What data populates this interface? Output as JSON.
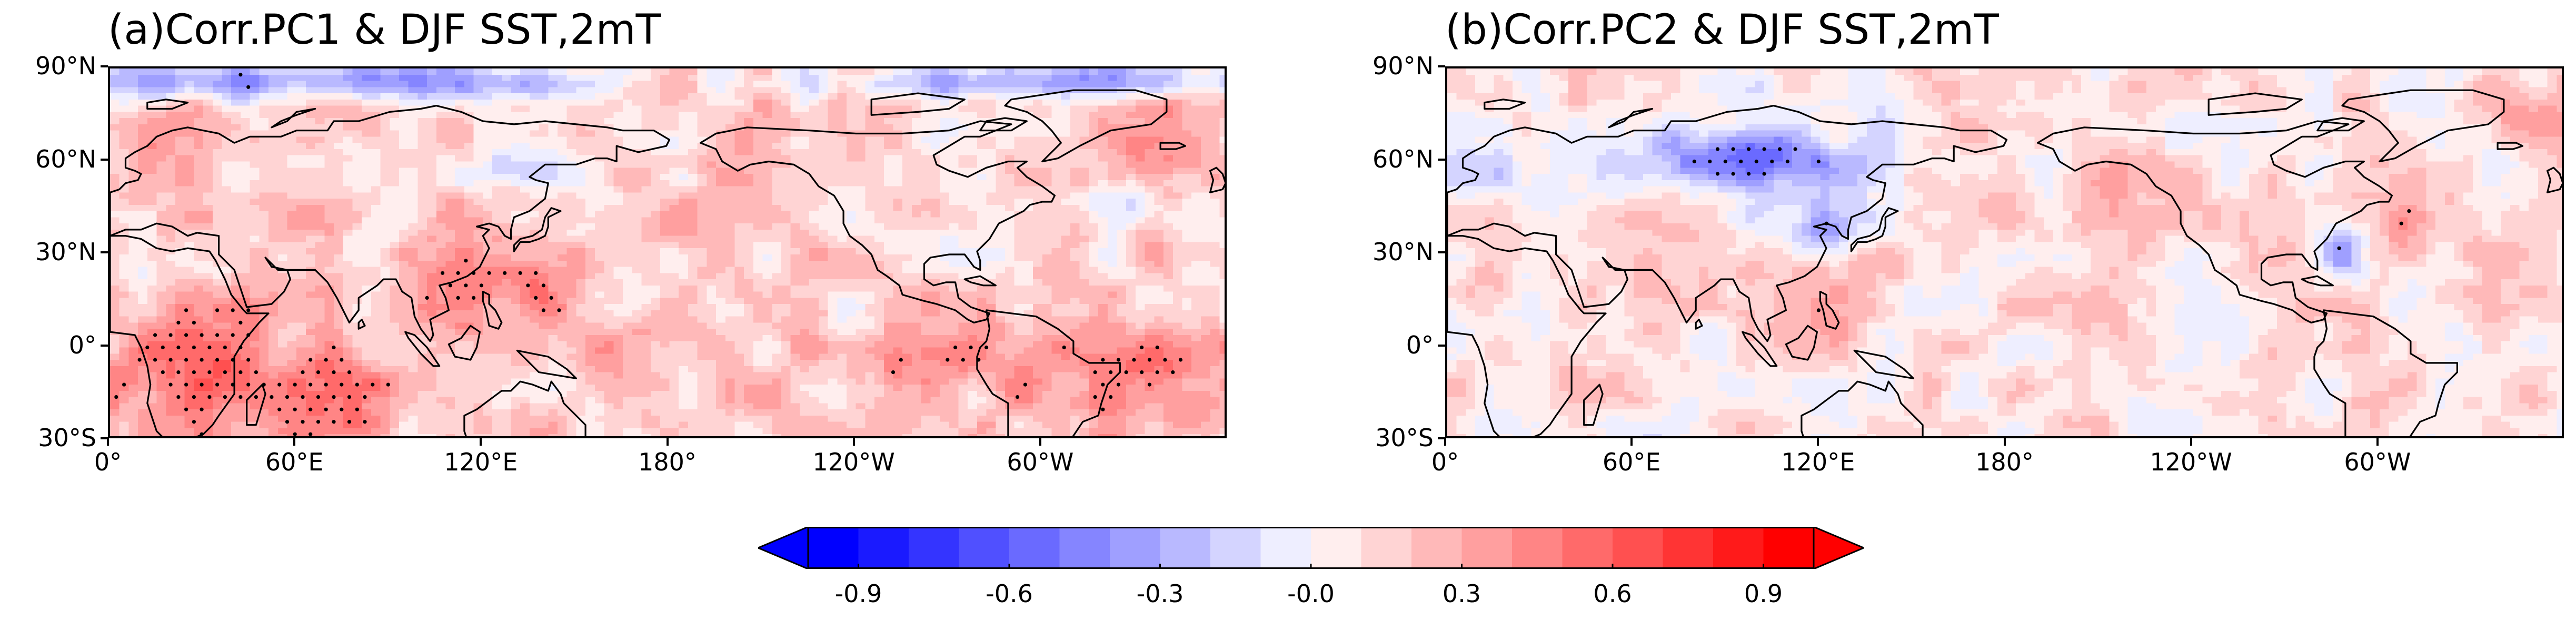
{
  "panels": [
    {
      "title": "(a)Corr.PC1 & DJF SST,2mT",
      "lat_labels": [
        "90°N",
        "60°N",
        "30°N",
        "0°",
        "30°S"
      ],
      "lon_labels": [
        "0°",
        "60°E",
        "120°E",
        "180°",
        "120°W",
        "60°W"
      ]
    },
    {
      "title": "(b)Corr.PC2 & DJF SST,2mT",
      "lat_labels": [
        "90°N",
        "60°N",
        "30°N",
        "0°",
        "30°S"
      ],
      "lon_labels": [
        "0°",
        "60°E",
        "120°E",
        "180°",
        "120°W",
        "60°W"
      ]
    }
  ],
  "colorbar": {
    "tick_labels": [
      "-0.9",
      "-0.6",
      "-0.3",
      "-0.0",
      "0.3",
      "0.6",
      "0.9"
    ],
    "levels": [
      -1.0,
      -0.9,
      -0.8,
      -0.7,
      -0.6,
      -0.5,
      -0.4,
      -0.3,
      -0.2,
      -0.1,
      0.0,
      0.1,
      0.2,
      0.3,
      0.4,
      0.5,
      0.6,
      0.7,
      0.8,
      0.9,
      1.0
    ],
    "colors": [
      "#0000ff",
      "#1a1aff",
      "#3434ff",
      "#5050ff",
      "#6a6aff",
      "#8585ff",
      "#9f9fff",
      "#b9b9ff",
      "#d4d4ff",
      "#eeeeff",
      "#ffeeee",
      "#ffd4d4",
      "#ffb9b9",
      "#ff9f9f",
      "#ff8585",
      "#ff6a6a",
      "#ff5050",
      "#ff3434",
      "#ff1a1a",
      "#ff0000"
    ],
    "extend": "both"
  }
}
